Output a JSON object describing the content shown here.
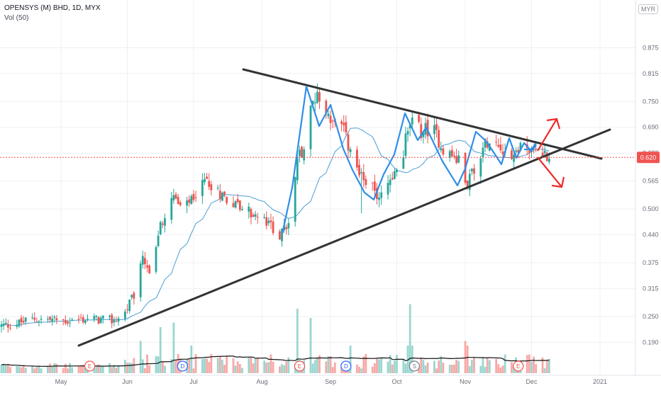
{
  "header": {
    "symbol_title": "OPENSYS (M) BHD, 1D, MYX",
    "volume_label": "Vol (50)",
    "currency": "MYR"
  },
  "chart_data": {
    "type": "candlestick",
    "ylim": [
      0.13,
      0.92
    ],
    "price_ticks": [
      "0.875",
      "0.815",
      "0.750",
      "0.690",
      "0.630",
      "0.565",
      "0.500",
      "0.440",
      "0.375",
      "0.315",
      "0.250",
      "0.190"
    ],
    "price_tick_values": [
      0.875,
      0.815,
      0.75,
      0.69,
      0.63,
      0.565,
      0.5,
      0.44,
      0.375,
      0.315,
      0.25,
      0.19
    ],
    "last_price": "0.620",
    "last_price_value": 0.62,
    "time_ticks": [
      {
        "label": "May",
        "day": 27
      },
      {
        "label": "Jun",
        "day": 57
      },
      {
        "label": "Jul",
        "day": 87
      },
      {
        "label": "Aug",
        "day": 118
      },
      {
        "label": "Sep",
        "day": 149
      },
      {
        "label": "Oct",
        "day": 179
      },
      {
        "label": "Nov",
        "day": 210
      },
      {
        "label": "Dec",
        "day": 240
      },
      {
        "label": "2021",
        "day": 271
      }
    ],
    "day_range": [
      0,
      293
    ],
    "last_day": 248,
    "price_waypoints": [
      [
        0,
        0.228
      ],
      [
        8,
        0.235
      ],
      [
        15,
        0.245
      ],
      [
        22,
        0.243
      ],
      [
        30,
        0.24
      ],
      [
        40,
        0.245
      ],
      [
        50,
        0.24
      ],
      [
        55,
        0.25
      ],
      [
        60,
        0.3
      ],
      [
        64,
        0.38
      ],
      [
        68,
        0.34
      ],
      [
        72,
        0.46
      ],
      [
        77,
        0.54
      ],
      [
        82,
        0.49
      ],
      [
        88,
        0.54
      ],
      [
        93,
        0.57
      ],
      [
        98,
        0.54
      ],
      [
        104,
        0.52
      ],
      [
        110,
        0.5
      ],
      [
        116,
        0.48
      ],
      [
        122,
        0.46
      ],
      [
        126,
        0.44
      ],
      [
        130,
        0.46
      ],
      [
        134,
        0.62
      ],
      [
        138,
        0.65
      ],
      [
        141,
        0.77
      ],
      [
        146,
        0.74
      ],
      [
        150,
        0.7
      ],
      [
        155,
        0.68
      ],
      [
        160,
        0.6
      ],
      [
        166,
        0.56
      ],
      [
        170,
        0.53
      ],
      [
        175,
        0.56
      ],
      [
        181,
        0.61
      ],
      [
        185,
        0.71
      ],
      [
        190,
        0.68
      ],
      [
        195,
        0.69
      ],
      [
        200,
        0.64
      ],
      [
        207,
        0.61
      ],
      [
        211,
        0.565
      ],
      [
        216,
        0.62
      ],
      [
        221,
        0.67
      ],
      [
        226,
        0.65
      ],
      [
        231,
        0.62
      ],
      [
        236,
        0.655
      ],
      [
        240,
        0.63
      ],
      [
        244,
        0.64
      ],
      [
        248,
        0.62
      ]
    ],
    "volume_spikes": [
      {
        "day": 62,
        "value": 0.4
      },
      {
        "day": 63,
        "value": 0.35
      },
      {
        "day": 72,
        "value": 0.5
      },
      {
        "day": 76,
        "value": 0.75
      },
      {
        "day": 78,
        "value": 0.55
      },
      {
        "day": 86,
        "value": 0.3
      },
      {
        "day": 134,
        "value": 0.7
      },
      {
        "day": 138,
        "value": 0.6
      },
      {
        "day": 139,
        "value": 1.0
      },
      {
        "day": 140,
        "value": 0.6
      },
      {
        "day": 152,
        "value": 0.45
      },
      {
        "day": 158,
        "value": 0.3
      },
      {
        "day": 184,
        "value": 0.3
      },
      {
        "day": 185,
        "value": 0.75
      },
      {
        "day": 186,
        "value": 0.3
      },
      {
        "day": 210,
        "value": 0.35
      },
      {
        "day": 211,
        "value": 0.3
      }
    ],
    "event_markers": [
      {
        "label": "E",
        "day": 40,
        "type": "earnings"
      },
      {
        "label": "D",
        "day": 82,
        "type": "dividend"
      },
      {
        "label": "E",
        "day": 135,
        "type": "earnings"
      },
      {
        "label": "D",
        "day": 156,
        "type": "dividend"
      },
      {
        "label": "S",
        "day": 187,
        "type": "split"
      },
      {
        "label": "E",
        "day": 234,
        "type": "earnings"
      }
    ],
    "colors": {
      "up": "#26a69a",
      "down": "#ef5350",
      "up_volume": "#9ad6cf",
      "down_volume": "#f7a9a7",
      "moving_average": "#4a9ed6",
      "trendline": "#333333",
      "pattern": "#2f8ee8",
      "arrows": "#ef2a2a",
      "grid": "#eef0f3",
      "axis_text": "#6a6d78"
    }
  }
}
